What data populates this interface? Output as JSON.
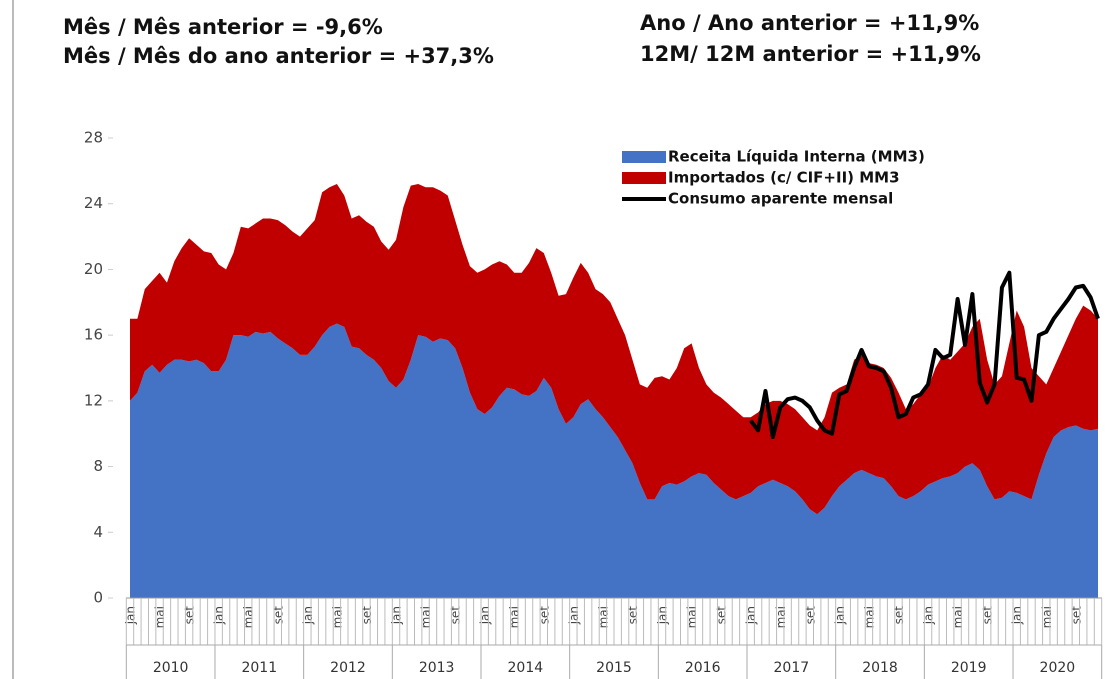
{
  "chart_data": {
    "type": "stacked_area_line",
    "title_left": [
      "Mês / Mês anterior = -9,6%",
      "Mês / Mês do ano anterior = +37,3%"
    ],
    "title_right": [
      "Ano / Ano anterior = +11,9%",
      "12M/ 12M anterior = +11,9%"
    ],
    "categories": [
      "jan",
      null,
      null,
      null,
      "mai",
      null,
      null,
      null,
      "set",
      null,
      null,
      null,
      "jan",
      null,
      null,
      null,
      "mai",
      null,
      null,
      null,
      "set",
      null,
      null,
      null,
      "jan",
      null,
      null,
      null,
      "mai",
      null,
      null,
      null,
      "set",
      null,
      null,
      null,
      "jan",
      null,
      null,
      null,
      "mai",
      null,
      null,
      null,
      "set",
      null,
      null,
      null,
      "jan",
      null,
      null,
      null,
      "mai",
      null,
      null,
      null,
      "set",
      null,
      null,
      null,
      "jan",
      null,
      null,
      null,
      "mai",
      null,
      null,
      null,
      "set",
      null,
      null,
      null,
      "jan",
      null,
      null,
      null,
      "mai",
      null,
      null,
      null,
      "set",
      null,
      null,
      null,
      "jan",
      null,
      null,
      null,
      "mai",
      null,
      null,
      null,
      "set",
      null,
      null,
      null,
      "jan",
      null,
      null,
      null,
      "mai",
      null,
      null,
      null,
      "set",
      null,
      null,
      null,
      "jan",
      null,
      null,
      null,
      "mai",
      null,
      null,
      null,
      "set",
      null,
      null,
      null,
      "jan",
      null,
      null,
      null,
      "mai",
      null,
      null,
      null,
      "set",
      null,
      null,
      null
    ],
    "years": [
      "2010",
      "2011",
      "2012",
      "2013",
      "2014",
      "2015",
      "2016",
      "2017",
      "2018",
      "2019",
      "2020"
    ],
    "series": [
      {
        "name": "Receita Líquida Interna (MM3)",
        "color": "#4472c4",
        "kind": "area",
        "values": [
          12,
          12.5,
          13.8,
          14.2,
          13.7,
          14.2,
          14.5,
          14.5,
          14.4,
          14.5,
          14.3,
          13.8,
          13.8,
          14.5,
          16,
          16,
          15.9,
          16.2,
          16.1,
          16.2,
          15.8,
          15.5,
          15.2,
          14.8,
          14.8,
          15.3,
          16,
          16.5,
          16.7,
          16.5,
          15.3,
          15.2,
          14.8,
          14.5,
          14,
          13.2,
          12.8,
          13.3,
          14.5,
          16,
          15.9,
          15.6,
          15.8,
          15.7,
          15.2,
          14,
          12.5,
          11.5,
          11.2,
          11.6,
          12.3,
          12.8,
          12.7,
          12.4,
          12.3,
          12.6,
          13.4,
          12.8,
          11.5,
          10.6,
          11,
          11.8,
          12.1,
          11.5,
          11,
          10.4,
          9.8,
          9,
          8.2,
          7,
          6,
          6,
          6.8,
          7,
          6.9,
          7.1,
          7.4,
          7.6,
          7.5,
          7,
          6.6,
          6.2,
          6,
          6.2,
          6.4,
          6.8,
          7,
          7.2,
          7,
          6.8,
          6.5,
          6,
          5.4,
          5.1,
          5.5,
          6.2,
          6.8,
          7.2,
          7.6,
          7.8,
          7.6,
          7.4,
          7.3,
          6.8,
          6.2,
          6,
          6.2,
          6.5,
          6.9,
          7.1,
          7.3,
          7.4,
          7.6,
          8,
          8.2,
          7.8,
          6.8,
          6,
          6.1,
          6.5,
          6.4,
          6.2,
          6,
          7.5,
          8.8,
          9.8,
          10.2,
          10.4,
          10.5,
          10.3,
          10.2,
          10.3
        ]
      },
      {
        "name": "Importados (c/ CIF+II) MM3",
        "color": "#c00000",
        "kind": "area",
        "values": [
          5,
          4.5,
          5,
          5.1,
          6.1,
          5,
          6,
          6.8,
          7.5,
          7,
          6.8,
          7.2,
          6.5,
          5.5,
          5,
          6.6,
          6.6,
          6.6,
          7,
          6.9,
          7.2,
          7.2,
          7.1,
          7.2,
          7.7,
          7.7,
          8.7,
          8.5,
          8.5,
          8,
          7.8,
          8.1,
          8.1,
          8.1,
          7.7,
          8,
          9,
          10.5,
          10.6,
          9.2,
          9.1,
          9.4,
          9,
          8.8,
          7.8,
          7.5,
          7.7,
          8.3,
          8.8,
          8.7,
          8.2,
          7.5,
          7.1,
          7.4,
          8.1,
          8.7,
          7.6,
          7,
          6.9,
          7.9,
          8.5,
          8.6,
          7.7,
          7.3,
          7.5,
          7.6,
          7.2,
          7,
          6.3,
          6,
          6.8,
          7.4,
          6.7,
          6.3,
          7.1,
          8.1,
          8.1,
          6.4,
          5.5,
          5.5,
          5.6,
          5.6,
          5.4,
          4.8,
          4.6,
          4.5,
          4.8,
          4.8,
          5,
          5,
          5,
          5,
          5.1,
          5.1,
          5.5,
          6.3,
          6,
          5.8,
          6.9,
          7,
          6.7,
          6.8,
          6.7,
          6.6,
          6.3,
          5.5,
          5.6,
          5.9,
          5.9,
          6.9,
          7.5,
          7.1,
          7.4,
          7.5,
          8.3,
          9.2,
          7.7,
          7,
          7.4,
          9,
          11.1,
          10.3,
          8,
          6,
          4.2,
          4.2,
          4.8,
          5.6,
          6.5,
          7.5,
          7.3,
          6.7
        ]
      },
      {
        "name": "Consumo aparente mensal",
        "color": "#000000",
        "kind": "line",
        "values": [
          null,
          null,
          null,
          null,
          null,
          null,
          null,
          null,
          null,
          null,
          null,
          null,
          null,
          null,
          null,
          null,
          null,
          null,
          null,
          null,
          null,
          null,
          null,
          null,
          null,
          null,
          null,
          null,
          null,
          null,
          null,
          null,
          null,
          null,
          null,
          null,
          null,
          null,
          null,
          null,
          null,
          null,
          null,
          null,
          null,
          null,
          null,
          null,
          null,
          null,
          null,
          null,
          null,
          null,
          null,
          null,
          null,
          null,
          null,
          null,
          null,
          null,
          null,
          null,
          null,
          null,
          null,
          null,
          null,
          null,
          null,
          null,
          null,
          null,
          null,
          null,
          null,
          null,
          null,
          null,
          null,
          null,
          null,
          null,
          10.8,
          10.2,
          12.6,
          9.8,
          11.6,
          12.1,
          12.2,
          12,
          11.6,
          10.8,
          10.2,
          10,
          12.4,
          12.6,
          14,
          15.1,
          14.1,
          14,
          13.8,
          12.8,
          11,
          11.2,
          12.2,
          12.4,
          13,
          15.1,
          14.6,
          14.8,
          18.2,
          15.4,
          18.5,
          13.1,
          11.9,
          13,
          18.9,
          19.8,
          13.4,
          13.3,
          12,
          16,
          16.2,
          17,
          17.6,
          18.2,
          18.9,
          19,
          18.3,
          17
        ]
      }
    ],
    "ylim": [
      0,
      28
    ],
    "yticks": [
      0,
      4,
      8,
      12,
      16,
      20,
      24,
      28
    ],
    "grid": false
  }
}
